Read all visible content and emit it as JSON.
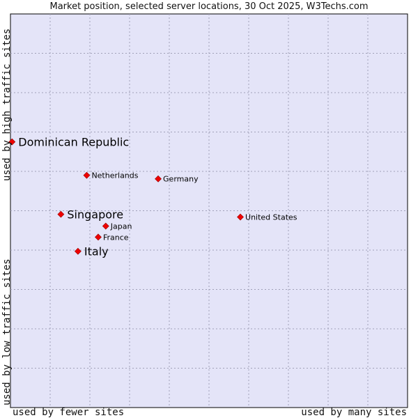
{
  "chart_data": {
    "type": "scatter",
    "title": "Market position, selected server locations, 30 Oct 2025, W3Techs.com",
    "xlabel_left": "used by fewer sites",
    "xlabel_right": "used by many sites",
    "ylabel_bottom": "used by low traffic sites",
    "ylabel_top": "used by high traffic sites",
    "xlim": [
      0,
      100
    ],
    "ylim": [
      0,
      100
    ],
    "grid": true,
    "points": [
      {
        "label": "Dominican Republic",
        "x": 0.4,
        "y": 67.5,
        "size": "large"
      },
      {
        "label": "Netherlands",
        "x": 19.2,
        "y": 59.0,
        "size": "small"
      },
      {
        "label": "Germany",
        "x": 37.2,
        "y": 58.1,
        "size": "small"
      },
      {
        "label": "Singapore",
        "x": 12.7,
        "y": 49.1,
        "size": "large"
      },
      {
        "label": "United States",
        "x": 57.9,
        "y": 48.4,
        "size": "small"
      },
      {
        "label": "Japan",
        "x": 24.0,
        "y": 46.1,
        "size": "small"
      },
      {
        "label": "France",
        "x": 22.1,
        "y": 43.3,
        "size": "small"
      },
      {
        "label": "Italy",
        "x": 17.0,
        "y": 39.7,
        "size": "large"
      }
    ]
  },
  "colors": {
    "plot_bg": "#e4e4f8",
    "grid": "#a0a0b8",
    "marker": "#ee0000",
    "axis": "#000000"
  }
}
